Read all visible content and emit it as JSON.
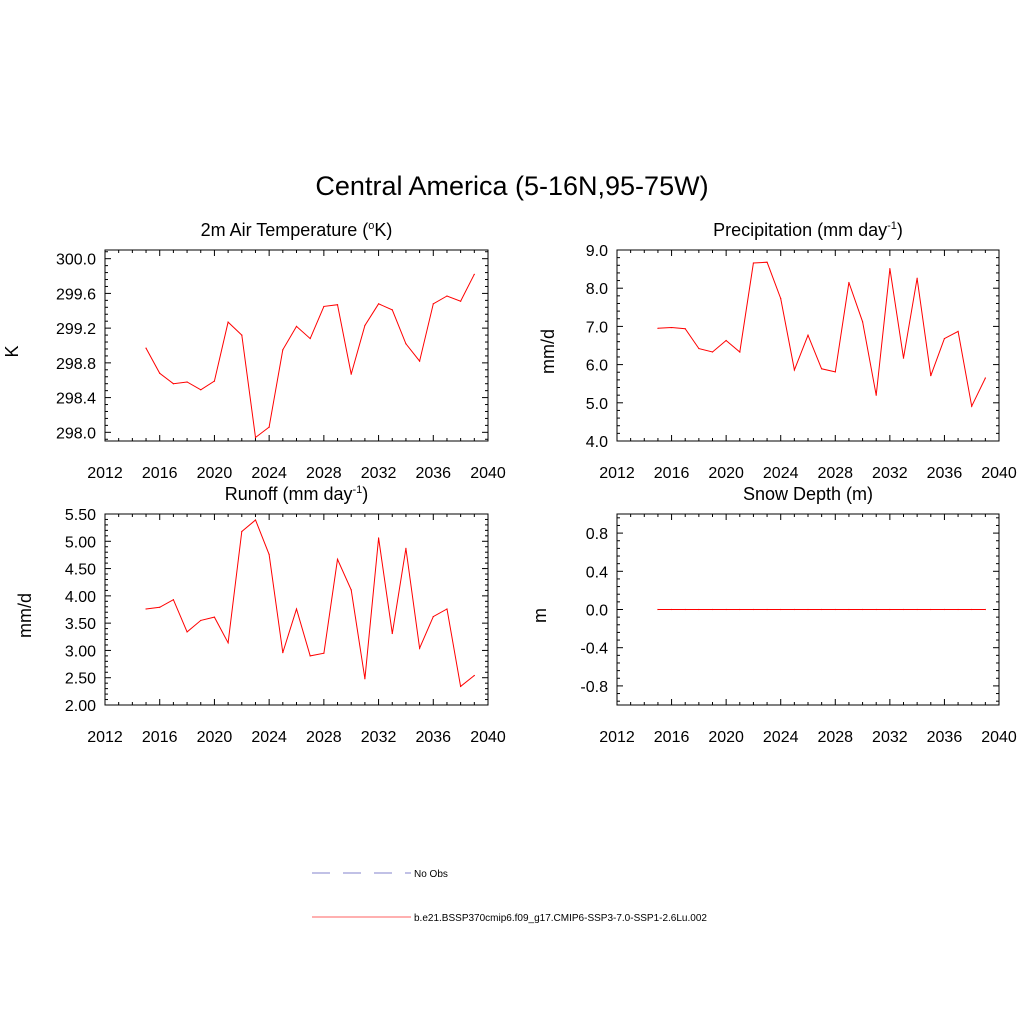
{
  "title": "Central America (5-16N,95-75W)",
  "chart_data": [
    {
      "type": "line",
      "title": "2m Air Temperature (",
      "title_sup": "o",
      "title_post": "K)",
      "ylabel": "K",
      "xlim": [
        2012,
        2040
      ],
      "ylim": [
        297.9,
        300.1
      ],
      "xticks": [
        "2012",
        "2016",
        "2020",
        "2024",
        "2028",
        "2032",
        "2036",
        "2040"
      ],
      "yticks": [
        "298.0",
        "298.4",
        "298.8",
        "299.2",
        "299.6",
        "300.0"
      ],
      "x": [
        2015,
        2016,
        2017,
        2018,
        2019,
        2020,
        2021,
        2022,
        2023,
        2024,
        2025,
        2026,
        2027,
        2028,
        2029,
        2030,
        2031,
        2032,
        2033,
        2034,
        2035,
        2036,
        2037,
        2038,
        2039
      ],
      "series": [
        {
          "name": "b.e21.BSSP370cmip6.f09_g17.CMIP6-SSP3-7.0-SSP1-2.6Lu.002",
          "values": [
            298.97,
            298.68,
            298.56,
            298.58,
            298.49,
            298.59,
            299.27,
            299.12,
            297.94,
            298.06,
            298.95,
            299.22,
            299.08,
            299.45,
            299.47,
            298.67,
            299.23,
            299.48,
            299.41,
            299.02,
            298.82,
            299.48,
            299.57,
            299.51,
            299.82
          ],
          "color": "#ff0000"
        }
      ]
    },
    {
      "type": "line",
      "title": "Precipitation (mm day",
      "title_sup": "-1",
      "title_post": ")",
      "ylabel": "mm/d",
      "xlim": [
        2012,
        2040
      ],
      "ylim": [
        4.0,
        9.0
      ],
      "xticks": [
        "2012",
        "2016",
        "2020",
        "2024",
        "2028",
        "2032",
        "2036",
        "2040"
      ],
      "yticks": [
        "4.0",
        "5.0",
        "6.0",
        "7.0",
        "8.0",
        "9.0"
      ],
      "x": [
        2015,
        2016,
        2017,
        2018,
        2019,
        2020,
        2021,
        2022,
        2023,
        2024,
        2025,
        2026,
        2027,
        2028,
        2029,
        2030,
        2031,
        2032,
        2033,
        2034,
        2035,
        2036,
        2037,
        2038,
        2039
      ],
      "series": [
        {
          "name": "b.e21.BSSP370cmip6.f09_g17.CMIP6-SSP3-7.0-SSP1-2.6Lu.002",
          "values": [
            6.95,
            6.97,
            6.94,
            6.42,
            6.33,
            6.63,
            6.33,
            8.66,
            8.68,
            7.73,
            5.86,
            6.77,
            5.89,
            5.81,
            8.15,
            7.12,
            5.2,
            8.51,
            6.17,
            8.26,
            5.71,
            6.68,
            6.87,
            4.91,
            5.65
          ],
          "color": "#ff0000"
        }
      ]
    },
    {
      "type": "line",
      "title": "Runoff (mm day",
      "title_sup": "-1",
      "title_post": ")",
      "ylabel": "mm/d",
      "xlim": [
        2012,
        2040
      ],
      "ylim": [
        2.0,
        5.5
      ],
      "xticks": [
        "2012",
        "2016",
        "2020",
        "2024",
        "2028",
        "2032",
        "2036",
        "2040"
      ],
      "yticks": [
        "2.00",
        "2.50",
        "3.00",
        "3.50",
        "4.00",
        "4.50",
        "5.00",
        "5.50"
      ],
      "x": [
        2015,
        2016,
        2017,
        2018,
        2019,
        2020,
        2021,
        2022,
        2023,
        2024,
        2025,
        2026,
        2027,
        2028,
        2029,
        2030,
        2031,
        2032,
        2033,
        2034,
        2035,
        2036,
        2037,
        2038,
        2039
      ],
      "series": [
        {
          "name": "b.e21.BSSP370cmip6.f09_g17.CMIP6-SSP3-7.0-SSP1-2.6Lu.002",
          "values": [
            3.76,
            3.79,
            3.93,
            3.34,
            3.55,
            3.61,
            3.14,
            5.18,
            5.39,
            4.76,
            2.96,
            3.76,
            2.9,
            2.95,
            4.67,
            4.11,
            2.48,
            5.06,
            3.31,
            4.87,
            3.04,
            3.62,
            3.76,
            2.34,
            2.54
          ],
          "color": "#ff0000"
        }
      ]
    },
    {
      "type": "line",
      "title": "Snow Depth (m)",
      "title_sup": "",
      "title_post": "",
      "ylabel": "m",
      "xlim": [
        2012,
        2040
      ],
      "ylim": [
        -1.0,
        1.0
      ],
      "xticks": [
        "2012",
        "2016",
        "2020",
        "2024",
        "2028",
        "2032",
        "2036",
        "2040"
      ],
      "yticks": [
        "-0.8",
        "-0.4",
        "0.0",
        "0.4",
        "0.8"
      ],
      "x": [
        2015,
        2016,
        2017,
        2018,
        2019,
        2020,
        2021,
        2022,
        2023,
        2024,
        2025,
        2026,
        2027,
        2028,
        2029,
        2030,
        2031,
        2032,
        2033,
        2034,
        2035,
        2036,
        2037,
        2038,
        2039
      ],
      "series": [
        {
          "name": "b.e21.BSSP370cmip6.f09_g17.CMIP6-SSP3-7.0-SSP1-2.6Lu.002",
          "values": [
            0,
            0,
            0,
            0,
            0,
            0,
            0,
            0,
            0,
            0,
            0,
            0,
            0,
            0,
            0,
            0,
            0,
            0,
            0,
            0,
            0,
            0,
            0,
            0,
            0
          ],
          "color": "#ff0000"
        }
      ]
    }
  ],
  "legend": [
    {
      "label": "No Obs",
      "color": "#9c9cd8",
      "dashed": true
    },
    {
      "label": "b.e21.BSSP370cmip6.f09_g17.CMIP6-SSP3-7.0-SSP1-2.6Lu.002",
      "color": "#ff8080",
      "dashed": false
    }
  ]
}
